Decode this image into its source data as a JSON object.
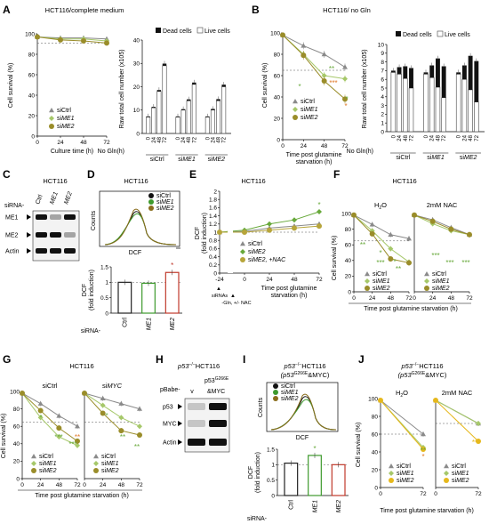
{
  "panel_letters": [
    "A",
    "B",
    "C",
    "D",
    "E",
    "F",
    "G",
    "H",
    "I",
    "J"
  ],
  "titles": {
    "A": "HCT116/complete medium",
    "B": "HCT116/ no Gln",
    "C": "HCT116",
    "D": "HCT116",
    "E": "HCT116",
    "F": "HCT116",
    "G": "HCT116",
    "H_pre": "p53",
    "H_sup": "−/−",
    "H_post": "HCT116",
    "I_pre": "p53",
    "I_sup": "−/−",
    "I_post": "HCT116",
    "I_sub": "(p53",
    "I_sub_sup": "G266E",
    "I_sub_post": "&MYC)",
    "J_pre": "p53",
    "J_sup": "−/−",
    "J_post": "HCT116",
    "J_sub": "(p53",
    "J_sub_sup": "G266E",
    "J_sub_post": "&MYC)"
  },
  "common": {
    "cell_survival": "Cell survival (%)",
    "time_post": "Time post glutamine starvation (h)",
    "time_post_b": "Time post glutamine",
    "starvation_h": "starvation (h)",
    "culture": "Culture time (h)",
    "raw": "Raw total cell number (x10",
    "raw_sup": "5",
    "raw_end": ")",
    "dead": "Dead cells",
    "live": "Live cells",
    "no_gln": "No Gln(h)",
    "dcf": "DCF",
    "dcf_fold": "(fold induction)",
    "counts": "Counts",
    "sirna": "siRNA-",
    "h2o": "H",
    "h2o_sub": "2",
    "h2o_end": "O",
    "nac": "2mM NAC",
    "sictrl": "siCtrl",
    "sime1": "siME1",
    "sime2": "siME2",
    "sime2_nac": "siME2, +NAC",
    "sictrl_g": "siCtrl",
    "simyc": "siMYC",
    "sirnas": "siRNAs",
    "gln_nac": "-Gln, +/- NAC",
    "blot_labels_c": [
      "ME1",
      "ME2",
      "Actin"
    ],
    "blot_cols_c": [
      "Ctrl",
      "ME1",
      "ME2"
    ],
    "pbabe": "pBabe-",
    "pbabe_v": "v",
    "p53mut": "p53",
    "p53mut_sup": "G266E",
    "p53mut_end": "&MYC",
    "blot_labels_h": [
      "p53",
      "MYC",
      "Actin"
    ],
    "star": "*",
    "star2": "**",
    "star3": "***"
  },
  "chart_data": [
    {
      "panel": "A-left",
      "type": "line",
      "x": [
        0,
        24,
        48,
        72
      ],
      "xlabel": "Culture time (h)",
      "ylabel": "Cell survival (%)",
      "ylim": [
        0,
        100
      ],
      "series": [
        {
          "name": "siCtrl",
          "values": [
            97,
            96,
            96,
            95
          ]
        },
        {
          "name": "siME1",
          "values": [
            97,
            95,
            95,
            93
          ]
        },
        {
          "name": "siME2",
          "values": [
            97,
            94,
            93,
            91
          ]
        }
      ]
    },
    {
      "panel": "A-right",
      "type": "bar",
      "groups": [
        "siCtrl",
        "siME1",
        "siME2"
      ],
      "categories": [
        "0",
        "24",
        "48",
        "72"
      ],
      "ylabel": "Raw total cell number (x10^5)",
      "ylim": [
        0,
        40
      ],
      "series": [
        {
          "name": "Dead cells",
          "values": [
            [
              0.3,
              0.4,
              0.6,
              0.9
            ],
            [
              0.3,
              0.4,
              0.6,
              0.8
            ],
            [
              0.3,
              0.5,
              0.7,
              0.9
            ]
          ]
        },
        {
          "name": "Live cells",
          "values": [
            [
              7,
              11,
              18,
              29
            ],
            [
              7,
              10,
              14,
              21
            ],
            [
              7,
              10,
              14,
              20
            ]
          ]
        }
      ]
    },
    {
      "panel": "B-left",
      "type": "line",
      "x": [
        0,
        24,
        48,
        72
      ],
      "xlabel": "Time post glutamine starvation (h)",
      "ylabel": "Cell survival (%)",
      "ylim": [
        0,
        100
      ],
      "series": [
        {
          "name": "siCtrl",
          "values": [
            98,
            88,
            80,
            68
          ]
        },
        {
          "name": "siME1",
          "values": [
            98,
            80,
            60,
            57
          ]
        },
        {
          "name": "siME2",
          "values": [
            98,
            79,
            55,
            38
          ]
        }
      ]
    },
    {
      "panel": "B-right",
      "type": "bar",
      "groups": [
        "siCtrl",
        "siME1",
        "siME2"
      ],
      "categories": [
        "0",
        "24",
        "48",
        "72"
      ],
      "ylabel": "Raw total cell number (x10^5)",
      "ylim": [
        0,
        10
      ],
      "series": [
        {
          "name": "Dead cells",
          "values": [
            [
              0.2,
              0.8,
              1.4,
              2.3
            ],
            [
              0.2,
              1.4,
              3.3,
              3.6
            ],
            [
              0.2,
              1.6,
              3.9,
              4.7
            ]
          ]
        },
        {
          "name": "Live cells",
          "values": [
            [
              6.8,
              6.6,
              6.1,
              5
            ],
            [
              6.6,
              6.2,
              5.1,
              3.9
            ],
            [
              6.6,
              6.0,
              4.8,
              3.4
            ]
          ]
        }
      ]
    },
    {
      "panel": "D-bottom",
      "type": "bar",
      "categories": [
        "Ctrl",
        "ME1",
        "ME2"
      ],
      "values": [
        1.0,
        0.97,
        1.32
      ],
      "ylabel": "DCF (fold induction)",
      "ylim": [
        0,
        1.5
      ]
    },
    {
      "panel": "E",
      "type": "line",
      "x": [
        -24,
        0,
        24,
        48,
        72
      ],
      "xlabel": "Time post glutamine starvation (h)",
      "ylabel": "DCF (fold induction)",
      "ylim": [
        0,
        2
      ],
      "series": [
        {
          "name": "siCtrl",
          "values": [
            1.0,
            1.02,
            1.1,
            1.15,
            1.2
          ]
        },
        {
          "name": "siME2",
          "values": [
            1.0,
            1.05,
            1.2,
            1.3,
            1.5
          ]
        },
        {
          "name": "siME2, +NAC",
          "values": [
            1.0,
            1.0,
            1.05,
            1.1,
            1.15
          ]
        }
      ]
    },
    {
      "panel": "F-H2O",
      "type": "line",
      "x": [
        0,
        24,
        48,
        72
      ],
      "xlabel": "Time post glutamine starvation (h)",
      "ylabel": "Cell survival (%)",
      "ylim": [
        0,
        100
      ],
      "series": [
        {
          "name": "siCtrl",
          "values": [
            98,
            86,
            73,
            68
          ]
        },
        {
          "name": "siME1",
          "values": [
            98,
            78,
            55,
            38
          ]
        },
        {
          "name": "siME2",
          "values": [
            98,
            74,
            42,
            37
          ]
        }
      ]
    },
    {
      "panel": "F-NAC",
      "type": "line",
      "x": [
        0,
        24,
        48,
        72
      ],
      "ylim": [
        0,
        100
      ],
      "series": [
        {
          "name": "siCtrl",
          "values": [
            98,
            92,
            82,
            73
          ]
        },
        {
          "name": "siME1",
          "values": [
            98,
            87,
            78,
            73
          ]
        },
        {
          "name": "siME2",
          "values": [
            98,
            90,
            80,
            73
          ]
        }
      ]
    },
    {
      "panel": "G-siCtrl",
      "type": "line",
      "x": [
        0,
        24,
        48,
        72
      ],
      "ylim": [
        0,
        100
      ],
      "series": [
        {
          "name": "siCtrl",
          "values": [
            98,
            86,
            72,
            60
          ]
        },
        {
          "name": "siME1",
          "values": [
            98,
            70,
            48,
            38
          ]
        },
        {
          "name": "siME2",
          "values": [
            98,
            78,
            58,
            43
          ]
        }
      ]
    },
    {
      "panel": "G-siMYC",
      "type": "line",
      "x": [
        0,
        24,
        48,
        72
      ],
      "ylim": [
        0,
        100
      ],
      "series": [
        {
          "name": "siCtrl",
          "values": [
            98,
            92,
            86,
            80
          ]
        },
        {
          "name": "siME1",
          "values": [
            98,
            84,
            70,
            60
          ]
        },
        {
          "name": "siME2",
          "values": [
            98,
            75,
            55,
            50
          ]
        }
      ]
    },
    {
      "panel": "I-bottom",
      "type": "bar",
      "categories": [
        "Ctrl",
        "ME1",
        "ME2"
      ],
      "values": [
        1.05,
        1.3,
        1.0
      ],
      "ylabel": "DCF (fold induction)",
      "ylim": [
        0,
        1.5
      ]
    },
    {
      "panel": "J-H2O",
      "type": "line",
      "x": [
        0,
        72
      ],
      "ylim": [
        0,
        100
      ],
      "series": [
        {
          "name": "siCtrl",
          "values": [
            98,
            60
          ]
        },
        {
          "name": "siME1",
          "values": [
            98,
            45
          ]
        },
        {
          "name": "siME2",
          "values": [
            98,
            43
          ]
        }
      ]
    },
    {
      "panel": "J-NAC",
      "type": "line",
      "x": [
        0,
        72
      ],
      "ylim": [
        0,
        100
      ],
      "series": [
        {
          "name": "siCtrl",
          "values": [
            98,
            72
          ]
        },
        {
          "name": "siME1",
          "values": [
            98,
            72
          ]
        },
        {
          "name": "siME2",
          "values": [
            98,
            52
          ]
        }
      ]
    }
  ]
}
